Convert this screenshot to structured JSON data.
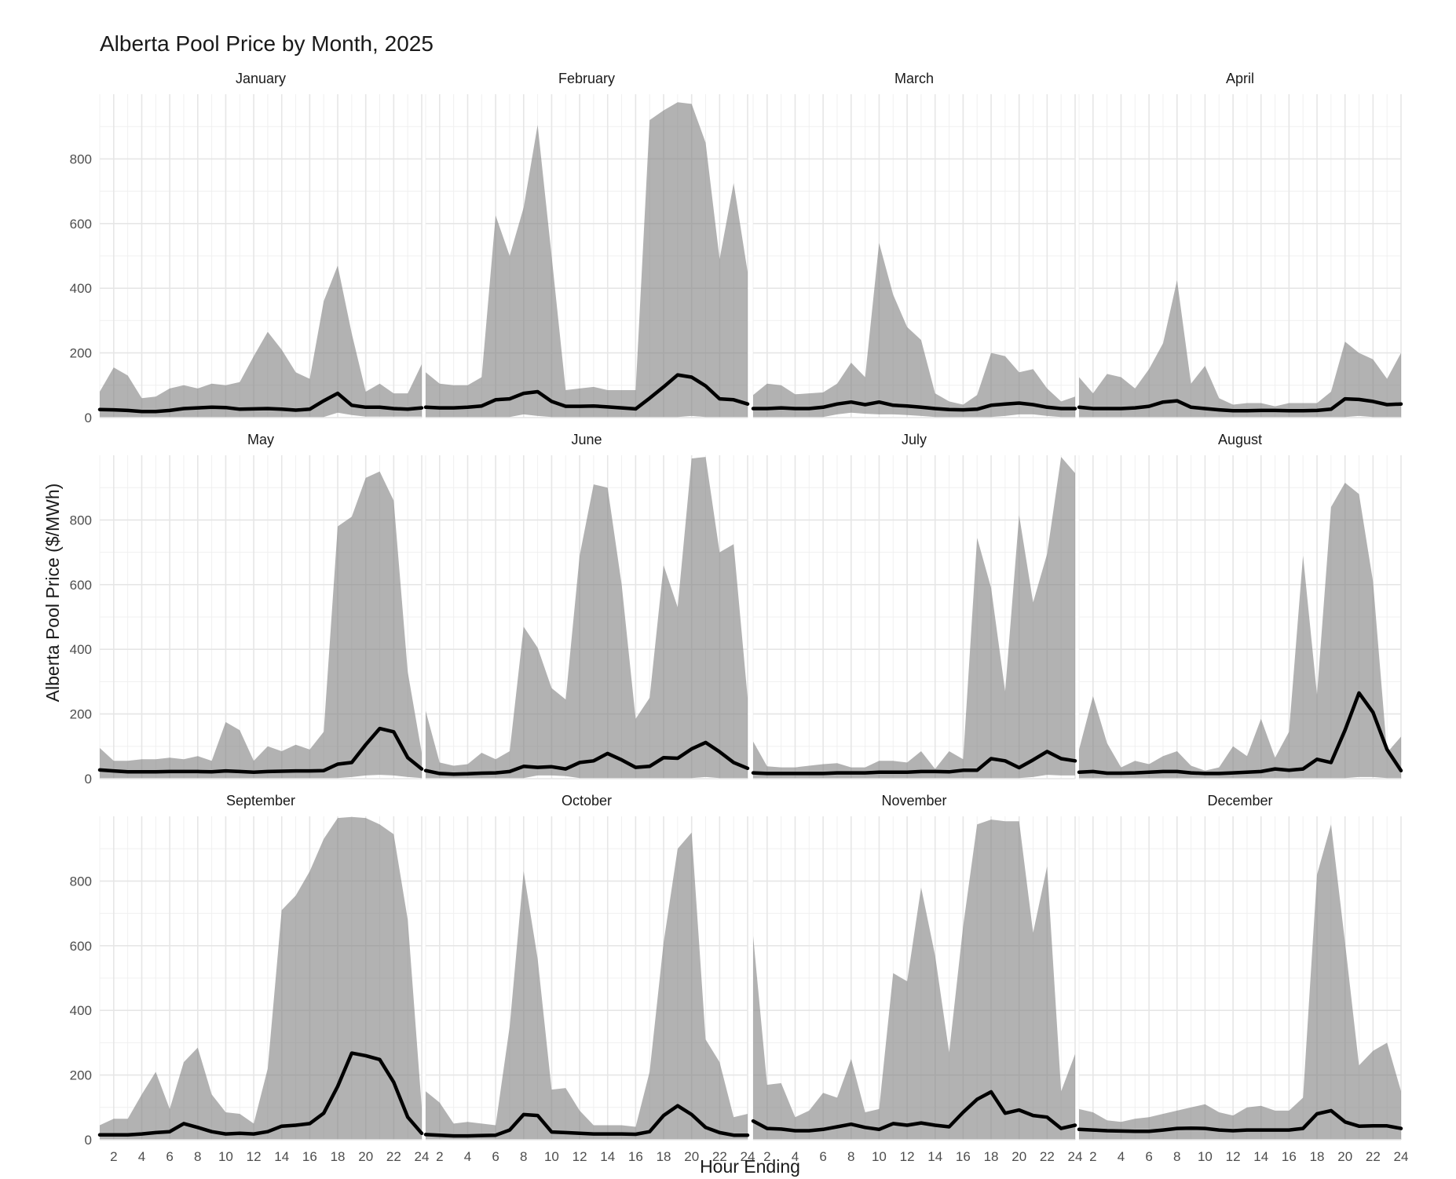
{
  "chart_data": {
    "type": "area",
    "title": "Alberta Pool Price by Month, 2025",
    "xlabel": "Hour Ending",
    "ylabel": "Alberta Pool Price ($/MWh)",
    "x": [
      1,
      2,
      3,
      4,
      5,
      6,
      7,
      8,
      9,
      10,
      11,
      12,
      13,
      14,
      15,
      16,
      17,
      18,
      19,
      20,
      21,
      22,
      23,
      24
    ],
    "x_ticks": [
      "2",
      "4",
      "6",
      "8",
      "10",
      "12",
      "14",
      "16",
      "18",
      "20",
      "22",
      "24"
    ],
    "x_tick_values": [
      2,
      4,
      6,
      8,
      10,
      12,
      14,
      16,
      18,
      20,
      22,
      24
    ],
    "y_ticks": [
      "0",
      "200",
      "400",
      "600",
      "800"
    ],
    "y_tick_values": [
      0,
      200,
      400,
      600,
      800
    ],
    "xlim": [
      1,
      24
    ],
    "ylim": [
      0,
      999.99
    ],
    "grid": true,
    "panels": [
      {
        "month": "January",
        "median": [
          25,
          24,
          22,
          19,
          19,
          22,
          28,
          30,
          32,
          31,
          26,
          27,
          28,
          26,
          23,
          26,
          52,
          75,
          38,
          32,
          32,
          28,
          26,
          30
        ],
        "max": [
          80,
          155,
          130,
          60,
          65,
          90,
          100,
          90,
          105,
          100,
          110,
          190,
          265,
          210,
          140,
          120,
          360,
          470,
          260,
          80,
          105,
          75,
          75,
          165
        ],
        "min": [
          2,
          2,
          2,
          2,
          2,
          2,
          2,
          2,
          2,
          2,
          2,
          2,
          2,
          2,
          2,
          2,
          2,
          15,
          8,
          3,
          3,
          3,
          3,
          3
        ]
      },
      {
        "month": "February",
        "median": [
          32,
          30,
          30,
          32,
          36,
          55,
          58,
          75,
          80,
          50,
          35,
          35,
          36,
          33,
          30,
          27,
          60,
          95,
          132,
          125,
          98,
          58,
          55,
          42
        ],
        "max": [
          140,
          105,
          100,
          100,
          125,
          625,
          500,
          650,
          905,
          500,
          85,
          90,
          95,
          85,
          85,
          85,
          920,
          950,
          975,
          970,
          850,
          490,
          725,
          450
        ],
        "min": [
          2,
          2,
          2,
          2,
          2,
          2,
          2,
          10,
          5,
          2,
          2,
          2,
          2,
          2,
          2,
          2,
          2,
          2,
          2,
          5,
          2,
          2,
          2,
          2
        ]
      },
      {
        "month": "March",
        "median": [
          28,
          28,
          30,
          28,
          28,
          32,
          42,
          48,
          40,
          48,
          38,
          36,
          32,
          28,
          25,
          24,
          26,
          38,
          42,
          45,
          40,
          32,
          28,
          28
        ],
        "max": [
          70,
          105,
          100,
          72,
          75,
          78,
          105,
          170,
          125,
          540,
          380,
          280,
          240,
          75,
          50,
          40,
          70,
          200,
          190,
          140,
          150,
          90,
          50,
          65
        ],
        "min": [
          2,
          2,
          2,
          2,
          2,
          2,
          10,
          15,
          12,
          10,
          10,
          8,
          5,
          2,
          2,
          2,
          2,
          2,
          5,
          10,
          10,
          5,
          2,
          2
        ]
      },
      {
        "month": "April",
        "median": [
          32,
          28,
          28,
          28,
          30,
          35,
          48,
          52,
          32,
          28,
          24,
          21,
          21,
          22,
          22,
          21,
          21,
          22,
          26,
          58,
          56,
          50,
          40,
          42
        ],
        "max": [
          125,
          75,
          135,
          125,
          90,
          150,
          230,
          425,
          105,
          160,
          60,
          40,
          45,
          45,
          35,
          45,
          45,
          45,
          80,
          235,
          200,
          180,
          120,
          200
        ],
        "min": [
          2,
          2,
          2,
          2,
          2,
          2,
          2,
          2,
          2,
          2,
          2,
          2,
          2,
          2,
          2,
          2,
          2,
          2,
          2,
          2,
          5,
          2,
          2,
          2
        ]
      },
      {
        "month": "May",
        "median": [
          27,
          24,
          21,
          21,
          21,
          22,
          22,
          22,
          21,
          24,
          22,
          20,
          22,
          23,
          24,
          24,
          25,
          45,
          50,
          105,
          155,
          145,
          65,
          30
        ],
        "max": [
          95,
          55,
          55,
          60,
          60,
          65,
          60,
          70,
          55,
          175,
          150,
          55,
          100,
          85,
          105,
          90,
          145,
          780,
          810,
          930,
          950,
          860,
          330,
          80
        ],
        "min": [
          2,
          2,
          2,
          2,
          2,
          2,
          2,
          2,
          2,
          2,
          2,
          2,
          2,
          2,
          2,
          2,
          2,
          2,
          5,
          10,
          12,
          10,
          5,
          2
        ]
      },
      {
        "month": "June",
        "median": [
          25,
          16,
          14,
          15,
          17,
          18,
          22,
          38,
          35,
          37,
          30,
          50,
          55,
          78,
          58,
          35,
          38,
          65,
          63,
          92,
          112,
          83,
          50,
          32
        ],
        "max": [
          210,
          50,
          40,
          45,
          80,
          60,
          85,
          470,
          405,
          280,
          245,
          690,
          910,
          900,
          600,
          185,
          250,
          660,
          530,
          990,
          995,
          700,
          725,
          250
        ],
        "min": [
          2,
          2,
          2,
          2,
          2,
          2,
          2,
          2,
          10,
          10,
          8,
          2,
          2,
          2,
          2,
          2,
          2,
          2,
          2,
          2,
          5,
          2,
          2,
          2
        ]
      },
      {
        "month": "July",
        "median": [
          18,
          16,
          16,
          16,
          16,
          16,
          18,
          18,
          18,
          20,
          20,
          20,
          22,
          22,
          21,
          26,
          26,
          62,
          55,
          34,
          58,
          84,
          62,
          55
        ],
        "max": [
          115,
          38,
          35,
          35,
          40,
          45,
          48,
          35,
          35,
          55,
          55,
          50,
          85,
          30,
          85,
          60,
          745,
          590,
          270,
          815,
          545,
          695,
          995,
          945
        ],
        "min": [
          2,
          2,
          2,
          2,
          2,
          2,
          2,
          2,
          2,
          2,
          2,
          2,
          2,
          2,
          2,
          2,
          2,
          2,
          2,
          2,
          5,
          12,
          10,
          10
        ]
      },
      {
        "month": "August",
        "median": [
          20,
          22,
          17,
          17,
          18,
          20,
          22,
          22,
          18,
          16,
          16,
          18,
          20,
          22,
          30,
          26,
          30,
          60,
          50,
          150,
          265,
          205,
          90,
          25
        ],
        "max": [
          90,
          255,
          110,
          35,
          55,
          45,
          70,
          85,
          40,
          25,
          35,
          100,
          70,
          185,
          65,
          145,
          690,
          260,
          840,
          915,
          880,
          610,
          80,
          130
        ],
        "min": [
          2,
          2,
          2,
          2,
          2,
          2,
          2,
          2,
          2,
          2,
          2,
          2,
          2,
          2,
          2,
          2,
          2,
          2,
          2,
          2,
          5,
          5,
          2,
          2
        ]
      },
      {
        "month": "September",
        "median": [
          15,
          15,
          15,
          18,
          22,
          25,
          50,
          38,
          25,
          18,
          20,
          18,
          25,
          42,
          45,
          50,
          82,
          165,
          268,
          260,
          248,
          178,
          70,
          20
        ],
        "max": [
          45,
          65,
          65,
          140,
          210,
          95,
          240,
          285,
          140,
          85,
          80,
          50,
          220,
          710,
          755,
          830,
          930,
          995,
          998,
          995,
          975,
          945,
          680,
          100
        ],
        "min": [
          2,
          2,
          2,
          2,
          2,
          2,
          2,
          2,
          2,
          2,
          2,
          2,
          2,
          2,
          2,
          2,
          2,
          2,
          2,
          2,
          2,
          2,
          2,
          2
        ]
      },
      {
        "month": "October",
        "median": [
          16,
          14,
          12,
          12,
          13,
          14,
          30,
          78,
          75,
          24,
          22,
          20,
          18,
          18,
          18,
          17,
          25,
          75,
          105,
          78,
          38,
          22,
          14,
          14
        ],
        "max": [
          150,
          115,
          50,
          55,
          50,
          45,
          350,
          830,
          560,
          155,
          160,
          90,
          45,
          45,
          45,
          40,
          210,
          610,
          900,
          950,
          310,
          240,
          70,
          80
        ],
        "min": [
          2,
          2,
          2,
          2,
          2,
          2,
          2,
          2,
          2,
          2,
          2,
          2,
          2,
          2,
          2,
          2,
          2,
          2,
          2,
          2,
          2,
          2,
          2,
          2
        ]
      },
      {
        "month": "November",
        "median": [
          58,
          35,
          33,
          28,
          28,
          32,
          40,
          48,
          38,
          32,
          50,
          45,
          52,
          45,
          40,
          85,
          125,
          148,
          82,
          92,
          75,
          70,
          35,
          45
        ],
        "max": [
          630,
          170,
          175,
          70,
          90,
          145,
          130,
          250,
          85,
          95,
          515,
          490,
          780,
          570,
          270,
          660,
          975,
          990,
          985,
          985,
          640,
          845,
          150,
          265
        ],
        "min": [
          2,
          2,
          2,
          2,
          2,
          2,
          2,
          2,
          2,
          2,
          2,
          2,
          2,
          2,
          2,
          2,
          2,
          2,
          2,
          2,
          2,
          2,
          2,
          2
        ]
      },
      {
        "month": "December",
        "median": [
          32,
          30,
          28,
          27,
          26,
          26,
          30,
          35,
          36,
          35,
          30,
          28,
          30,
          30,
          30,
          30,
          35,
          80,
          90,
          55,
          42,
          43,
          43,
          35
        ],
        "max": [
          95,
          85,
          60,
          55,
          65,
          70,
          80,
          90,
          100,
          110,
          85,
          75,
          100,
          105,
          90,
          90,
          130,
          820,
          975,
          610,
          230,
          275,
          300,
          150
        ],
        "min": [
          2,
          2,
          2,
          2,
          2,
          2,
          2,
          2,
          2,
          2,
          2,
          2,
          2,
          2,
          2,
          2,
          2,
          2,
          2,
          2,
          2,
          2,
          2,
          2
        ]
      }
    ]
  }
}
